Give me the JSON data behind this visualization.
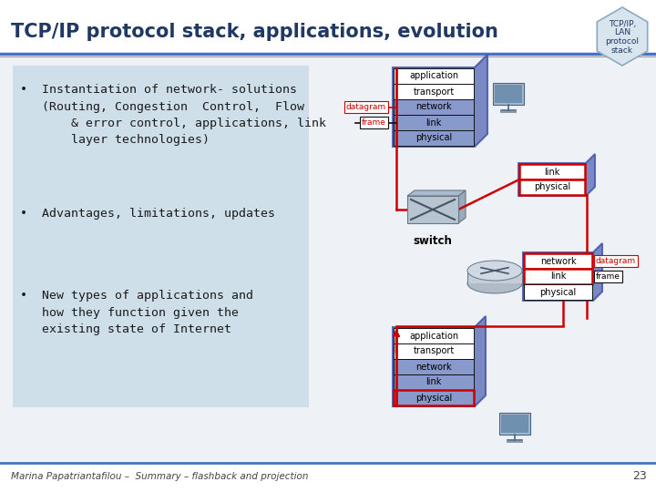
{
  "title": "TCP/IP protocol stack, applications, evolution",
  "title_color": "#1F3864",
  "title_fontsize": 15,
  "bg_color": "#F0F4F8",
  "footer_text": "Marina Papatriantafilou –  Summary – flashback and projection",
  "page_number": "23",
  "badge_lines": [
    "TCP/IP,",
    "LAN",
    "protocol",
    "stack"
  ],
  "bullet_box_color": "#CADCE8",
  "bullet_texts": [
    "•  Instantiation of network- solutions\n   (Routing, Congestion  Control,  Flow\n       & error control, applications, link\n       layer technologies)",
    "•  Advantages, limitations, updates",
    "•  New types of applications and\n   how they function given the\n   existing state of Internet"
  ],
  "stack_layers_top": [
    "application",
    "transport",
    "network",
    "link",
    "physical"
  ],
  "stack_layers_sw_right": [
    "link",
    "physical"
  ],
  "stack_layers_router": [
    "network",
    "link",
    "physical"
  ],
  "stack_layers_bottom": [
    "application",
    "transport",
    "network",
    "link",
    "physical"
  ],
  "header_line_color1": "#4472C4",
  "header_line_color2": "#A0A0A0",
  "red_color": "#CC0000",
  "label_datagram": "datagram",
  "label_frame": "frame",
  "label_switch": "switch"
}
